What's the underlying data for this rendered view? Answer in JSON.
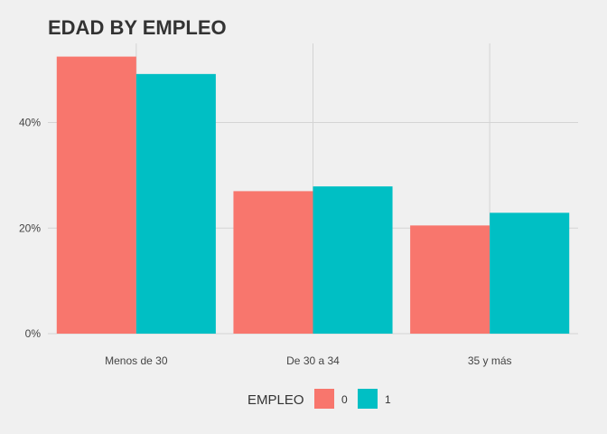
{
  "chart_data": {
    "type": "bar",
    "title": "EDAD BY EMPLEO",
    "xlabel": "",
    "ylabel": "",
    "categories": [
      "Menos de 30",
      "De 30 a 34",
      "35 y más"
    ],
    "series": [
      {
        "name": "0",
        "values": [
          52.5,
          27.0,
          20.5
        ]
      },
      {
        "name": "1",
        "values": [
          49.2,
          27.9,
          22.9
        ]
      }
    ],
    "ylim": [
      0,
      55
    ],
    "yticks": [
      0,
      20,
      40
    ],
    "ytick_labels": [
      "0%",
      "20%",
      "40%"
    ],
    "grid": true,
    "legend": {
      "title": "EMPLEO",
      "position": "bottom"
    },
    "colors": [
      "#F8766D",
      "#00BFC4"
    ]
  }
}
